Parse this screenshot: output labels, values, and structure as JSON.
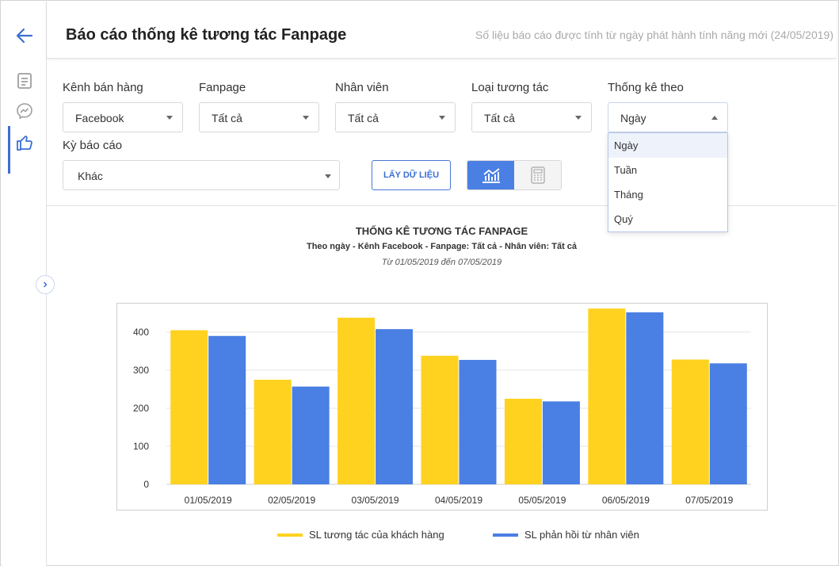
{
  "header": {
    "title": "Báo cáo thống kê tương tác Fanpage",
    "note": "Số liệu báo cáo được tính từ ngày phát hành tính năng mới (24/05/2019)"
  },
  "sidebar": {
    "items": [
      {
        "icon": "back-arrow-icon"
      },
      {
        "icon": "document-icon"
      },
      {
        "icon": "messenger-icon"
      },
      {
        "icon": "like-icon",
        "active": true
      }
    ]
  },
  "filters": {
    "channel": {
      "label": "Kênh bán hàng",
      "value": "Facebook"
    },
    "fanpage": {
      "label": "Fanpage",
      "value": "Tất cả"
    },
    "employee": {
      "label": "Nhân viên",
      "value": "Tất cả"
    },
    "interaction_type": {
      "label": "Loại tương tác",
      "value": "Tất cả"
    },
    "group_by": {
      "label": "Thống kê theo",
      "value": "Ngày",
      "options": [
        "Ngày",
        "Tuần",
        "Tháng",
        "Quý"
      ]
    },
    "period": {
      "label": "Kỳ báo cáo",
      "value": "Khác"
    },
    "fetch_button": "LẤY DỮ LIỆU"
  },
  "chart_heading": {
    "title": "THỐNG KÊ TƯƠNG TÁC FANPAGE",
    "subtitle": "Theo ngày - Kênh Facebook - Fanpage: Tất cả - Nhân viên: Tất cả",
    "range": "Từ 01/05/2019 đến 07/05/2019"
  },
  "colors": {
    "accent": "#3b6fd6",
    "series_yellow": "#ffd21f",
    "series_blue": "#4a7fe3"
  },
  "chart_data": {
    "type": "bar",
    "categories": [
      "01/05/2019",
      "02/05/2019",
      "03/05/2019",
      "04/05/2019",
      "05/05/2019",
      "06/05/2019",
      "07/05/2019"
    ],
    "series": [
      {
        "name": "SL tương tác của khách hàng",
        "color": "#ffd21f",
        "values": [
          405,
          275,
          438,
          338,
          225,
          462,
          328
        ]
      },
      {
        "name": "SL phản hồi từ nhân viên",
        "color": "#4a7fe3",
        "values": [
          390,
          257,
          408,
          327,
          218,
          452,
          318
        ]
      }
    ],
    "yticks": [
      0,
      100,
      200,
      300,
      400
    ],
    "ylim": [
      0,
      500
    ],
    "grid": true,
    "legend": "bottom"
  }
}
